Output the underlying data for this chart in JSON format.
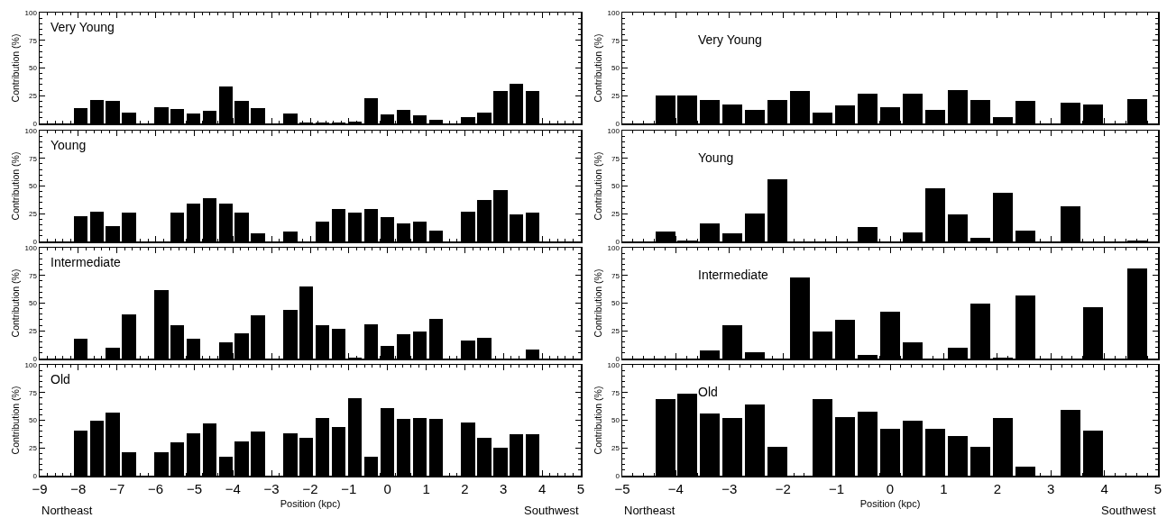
{
  "chart_data": [
    {
      "type": "bar",
      "title": "Very Young",
      "ylabel": "Contribution (%)",
      "color": "#000000",
      "xlim": [
        -9,
        5
      ],
      "ylim": [
        0,
        100
      ],
      "yticks": [
        0,
        25,
        50,
        75,
        100
      ],
      "tick_labels": "y",
      "grid": false,
      "x": [
        -7.94,
        -7.52,
        -7.11,
        -6.69,
        -6.27,
        -5.85,
        -5.44,
        -5.02,
        -4.6,
        -4.18,
        -3.77,
        -3.35,
        -2.93,
        -2.51,
        -2.1,
        -1.68,
        -1.26,
        -0.84,
        -0.43,
        -0.01,
        0.41,
        0.83,
        1.25,
        1.66,
        2.08,
        2.5,
        2.92,
        3.33,
        3.75
      ],
      "values": [
        14,
        21,
        20,
        10,
        null,
        15,
        13,
        9,
        11,
        33,
        20,
        14,
        null,
        9,
        1,
        1,
        1,
        2,
        23,
        8,
        12,
        7,
        3,
        null,
        6,
        10,
        29,
        36,
        29
      ]
    },
    {
      "type": "bar",
      "title": "Young",
      "ylabel": "Contribution (%)",
      "color": "#000000",
      "xlim": [
        -9,
        5
      ],
      "ylim": [
        0,
        100
      ],
      "yticks": [
        0,
        25,
        50,
        75,
        100
      ],
      "tick_labels": "y",
      "grid": false,
      "x": [
        -7.94,
        -7.52,
        -7.11,
        -6.69,
        -6.27,
        -5.85,
        -5.44,
        -5.02,
        -4.6,
        -4.18,
        -3.77,
        -3.35,
        -2.93,
        -2.51,
        -2.1,
        -1.68,
        -1.26,
        -0.84,
        -0.43,
        -0.01,
        0.41,
        0.83,
        1.25,
        1.66,
        2.08,
        2.5,
        2.92,
        3.33,
        3.75
      ],
      "values": [
        23,
        27,
        14,
        26,
        null,
        null,
        26,
        34,
        39,
        34,
        26,
        7,
        null,
        9,
        null,
        18,
        29,
        26,
        29,
        22,
        16,
        18,
        10,
        null,
        27,
        37,
        46,
        24,
        26
      ]
    },
    {
      "type": "bar",
      "title": "Intermediate",
      "ylabel": "Contribution (%)",
      "color": "#000000",
      "xlim": [
        -9,
        5
      ],
      "ylim": [
        0,
        100
      ],
      "yticks": [
        0,
        25,
        50,
        75,
        100
      ],
      "tick_labels": "y",
      "grid": false,
      "x": [
        -7.94,
        -7.52,
        -7.11,
        -6.69,
        -6.27,
        -5.85,
        -5.44,
        -5.02,
        -4.6,
        -4.18,
        -3.77,
        -3.35,
        -2.93,
        -2.51,
        -2.1,
        -1.68,
        -1.26,
        -0.84,
        -0.43,
        -0.01,
        0.41,
        0.83,
        1.25,
        1.66,
        2.08,
        2.5,
        2.92,
        3.33,
        3.75
      ],
      "values": [
        18,
        null,
        10,
        40,
        null,
        62,
        30,
        18,
        null,
        15,
        23,
        39,
        null,
        44,
        65,
        30,
        27,
        1,
        31,
        11,
        22,
        24,
        36,
        null,
        16,
        19,
        null,
        null,
        8
      ]
    },
    {
      "type": "bar",
      "title": "Old",
      "ylabel": "Contribution (%)",
      "xlabel": "Position (kpc)",
      "annotations": [
        "Northeast",
        "Southwest"
      ],
      "color": "#000000",
      "xlim": [
        -9,
        5
      ],
      "xticks": [
        -9,
        -8,
        -7,
        -6,
        -5,
        -4,
        -3,
        -2,
        -1,
        0,
        1,
        2,
        3,
        4,
        5
      ],
      "ylim": [
        0,
        100
      ],
      "yticks": [
        0,
        25,
        50,
        75,
        100
      ],
      "grid": false,
      "x": [
        -7.94,
        -7.52,
        -7.11,
        -6.69,
        -6.27,
        -5.85,
        -5.44,
        -5.02,
        -4.6,
        -4.18,
        -3.77,
        -3.35,
        -2.93,
        -2.51,
        -2.1,
        -1.68,
        -1.26,
        -0.84,
        -0.43,
        -0.01,
        0.41,
        0.83,
        1.25,
        1.66,
        2.08,
        2.5,
        2.92,
        3.33,
        3.75
      ],
      "values": [
        41,
        50,
        57,
        21,
        null,
        21,
        30,
        38,
        47,
        17,
        31,
        40,
        null,
        38,
        34,
        52,
        44,
        70,
        17,
        61,
        51,
        52,
        51,
        null,
        48,
        34,
        25,
        37,
        37
      ]
    },
    {
      "type": "bar",
      "title": "Very Young",
      "ylabel": "Contribution (%)",
      "color": "#000000",
      "xlim": [
        -5,
        5
      ],
      "ylim": [
        0,
        100
      ],
      "yticks": [
        0,
        25,
        50,
        75,
        100
      ],
      "tick_labels": "y",
      "grid": false,
      "x": [
        -4.2,
        -3.78,
        -3.36,
        -2.94,
        -2.52,
        -2.1,
        -1.68,
        -1.26,
        -0.84,
        -0.42,
        0,
        0.42,
        0.84,
        1.26,
        1.68,
        2.1,
        2.52,
        2.94,
        3.36,
        3.78,
        4.2,
        4.62
      ],
      "values": [
        25,
        25,
        21,
        17,
        12,
        21,
        29,
        10,
        16,
        27,
        15,
        27,
        12,
        30,
        21,
        6,
        20,
        null,
        19,
        17,
        null,
        22
      ]
    },
    {
      "type": "bar",
      "title": "Young",
      "ylabel": "Contribution (%)",
      "color": "#000000",
      "xlim": [
        -5,
        5
      ],
      "ylim": [
        0,
        100
      ],
      "yticks": [
        0,
        25,
        50,
        75,
        100
      ],
      "tick_labels": "y",
      "grid": false,
      "x": [
        -4.2,
        -3.78,
        -3.36,
        -2.94,
        -2.52,
        -2.1,
        -1.68,
        -1.26,
        -0.84,
        -0.42,
        0,
        0.42,
        0.84,
        1.26,
        1.68,
        2.1,
        2.52,
        2.94,
        3.36,
        3.78,
        4.2,
        4.62
      ],
      "values": [
        9,
        1,
        16,
        7,
        25,
        56,
        null,
        null,
        null,
        13,
        null,
        8,
        48,
        24,
        3,
        44,
        10,
        null,
        32,
        null,
        null,
        1
      ]
    },
    {
      "type": "bar",
      "title": "Intermediate",
      "ylabel": "Contribution (%)",
      "color": "#000000",
      "xlim": [
        -5,
        5
      ],
      "ylim": [
        0,
        100
      ],
      "yticks": [
        0,
        25,
        50,
        75,
        100
      ],
      "tick_labels": "y",
      "grid": false,
      "x": [
        -3.36,
        -2.94,
        -2.52,
        -2.1,
        -1.68,
        -1.26,
        -0.84,
        -0.42,
        0,
        0.42,
        0.84,
        1.26,
        1.68,
        2.1,
        2.52,
        2.94,
        3.36,
        3.78,
        4.2,
        4.62
      ],
      "values": [
        7,
        30,
        6,
        null,
        73,
        24,
        35,
        3,
        42,
        15,
        null,
        10,
        50,
        1,
        57,
        null,
        null,
        46,
        null,
        81
      ]
    },
    {
      "type": "bar",
      "title": "Old",
      "ylabel": "Contribution (%)",
      "xlabel": "Position (kpc)",
      "annotations": [
        "Northeast",
        "Southwest"
      ],
      "color": "#000000",
      "xlim": [
        -5,
        5
      ],
      "xticks": [
        -5,
        -4,
        -3,
        -2,
        -1,
        0,
        1,
        2,
        3,
        4,
        5
      ],
      "ylim": [
        0,
        100
      ],
      "yticks": [
        0,
        25,
        50,
        75,
        100
      ],
      "grid": false,
      "x": [
        -4.2,
        -3.78,
        -3.36,
        -2.94,
        -2.52,
        -2.1,
        -1.68,
        -1.26,
        -0.84,
        -0.42,
        0,
        0.42,
        0.84,
        1.26,
        1.68,
        2.1,
        2.52,
        2.94,
        3.36,
        3.78
      ],
      "values": [
        69,
        74,
        56,
        52,
        64,
        26,
        null,
        69,
        53,
        58,
        42,
        50,
        42,
        36,
        26,
        52,
        8,
        null,
        59,
        41
      ]
    }
  ]
}
